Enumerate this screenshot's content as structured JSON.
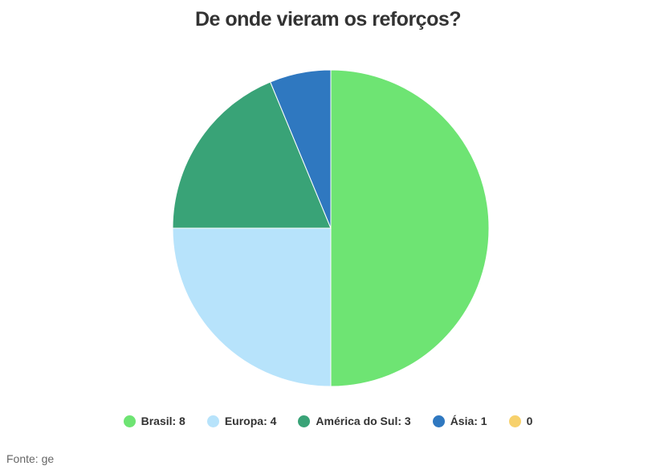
{
  "title": "De onde vieram os reforços?",
  "source": "Fonte: ge",
  "chart_data": {
    "type": "pie",
    "title": "De onde vieram os reforços?",
    "slices": [
      {
        "label": "Brasil",
        "value": 8,
        "color": "#6ee473"
      },
      {
        "label": "Europa",
        "value": 4,
        "color": "#b7e3fb"
      },
      {
        "label": "América do Sul",
        "value": 3,
        "color": "#39a377"
      },
      {
        "label": "Ásia",
        "value": 1,
        "color": "#2f78c0"
      },
      {
        "label": "",
        "value": 0,
        "color": "#f7d16c"
      }
    ],
    "legend_labels": [
      "Brasil: 8",
      "Europa: 4",
      "América do Sul: 3",
      "Ásia: 1",
      "0"
    ],
    "legend_position": "bottom"
  }
}
